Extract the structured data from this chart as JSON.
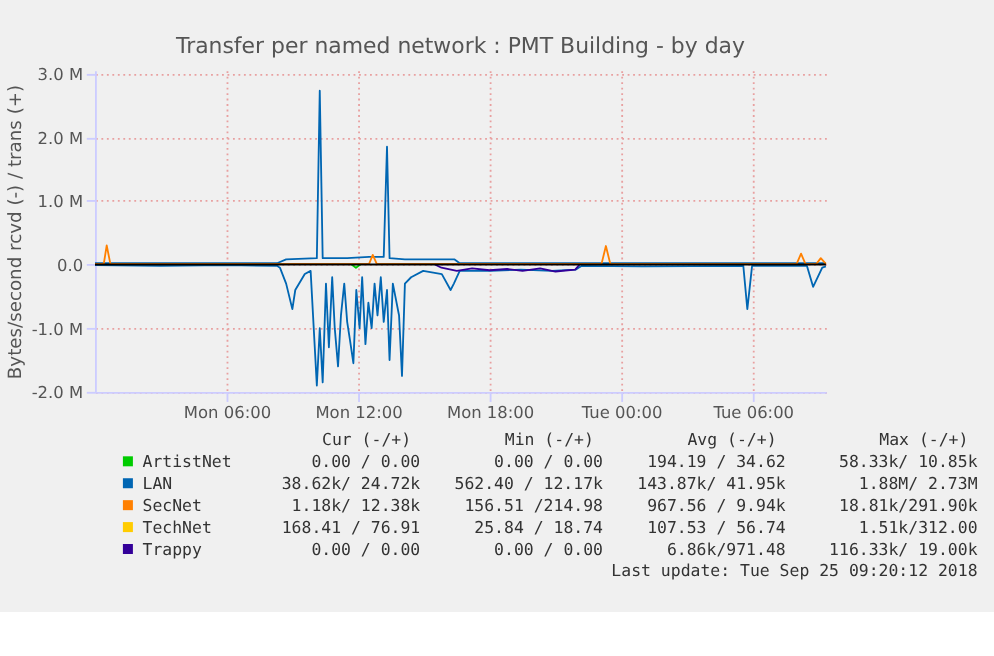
{
  "chart_data": {
    "type": "line",
    "title": "Transfer per named network : PMT Building - by day",
    "ylabel": "Bytes/second rcvd (-) / trans (+)",
    "xlim": [
      "2018-09-24T00:00",
      "2018-09-25T09:20"
    ],
    "xticks": [
      {
        "value": "2018-09-24T06:00",
        "label": "Mon 06:00"
      },
      {
        "value": "2018-09-24T12:00",
        "label": "Mon 12:00"
      },
      {
        "value": "2018-09-24T18:00",
        "label": "Mon 18:00"
      },
      {
        "value": "2018-09-25T00:00",
        "label": "Tue 00:00"
      },
      {
        "value": "2018-09-25T06:00",
        "label": "Tue 06:00"
      }
    ],
    "ylim": [
      -2000000,
      3050000
    ],
    "yticks": [
      {
        "value": -2000000,
        "label": "-2.0 M"
      },
      {
        "value": -1000000,
        "label": "-1.0 M"
      },
      {
        "value": 0,
        "label": "0.0"
      },
      {
        "value": 1000000,
        "label": "1.0 M"
      },
      {
        "value": 2000000,
        "label": "2.0 M"
      },
      {
        "value": 3000000,
        "label": "3.0 M"
      }
    ],
    "grid": true,
    "legend": "bottom",
    "line_style": "solid",
    "marker": "none",
    "ref_lines": [
      {
        "axis": "y",
        "value": 0,
        "color": "#000000"
      }
    ],
    "series": [
      {
        "name": "ArtistNet",
        "color": "#00cc00",
        "x": [
          "2018-09-24T11:42",
          "2018-09-24T11:54",
          "2018-09-24T12:06"
        ],
        "values": [
          0,
          -50000,
          0
        ]
      },
      {
        "name": "LAN",
        "color": "#0066b3",
        "x": [
          "2018-09-24T00:00",
          "2018-09-24T08:18",
          "2018-09-24T08:43",
          "2018-09-24T10:07",
          "2018-09-24T10:15",
          "2018-09-24T10:23",
          "2018-09-24T11:30",
          "2018-09-24T12:30",
          "2018-09-24T13:10",
          "2018-09-24T13:19",
          "2018-09-24T13:26",
          "2018-09-24T14:08",
          "2018-09-24T16:24",
          "2018-09-24T16:38",
          "2018-09-25T09:20"
        ],
        "values": [
          20000,
          20000,
          80000,
          100000,
          2730000,
          100000,
          100000,
          120000,
          120000,
          1850000,
          100000,
          80000,
          80000,
          20000,
          20000
        ]
      },
      {
        "color": "#0066b3",
        "x": [
          "2018-09-24T00:00",
          "2018-09-24T03:00",
          "2018-09-24T06:00",
          "2018-09-24T08:18",
          "2018-09-24T08:26",
          "2018-09-24T08:43",
          "2018-09-24T09:00",
          "2018-09-24T09:08",
          "2018-09-24T09:34",
          "2018-09-24T09:50",
          "2018-09-24T10:07",
          "2018-09-24T10:15",
          "2018-09-24T10:23",
          "2018-09-24T10:32",
          "2018-09-24T10:40",
          "2018-09-24T10:49",
          "2018-09-24T10:56",
          "2018-09-24T11:05",
          "2018-09-24T11:13",
          "2018-09-24T11:22",
          "2018-09-24T11:30",
          "2018-09-24T11:38",
          "2018-09-24T11:47",
          "2018-09-24T11:55",
          "2018-09-24T12:04",
          "2018-09-24T12:11",
          "2018-09-24T12:20",
          "2018-09-24T12:28",
          "2018-09-24T12:37",
          "2018-09-24T12:45",
          "2018-09-24T12:53",
          "2018-09-24T13:02",
          "2018-09-24T13:10",
          "2018-09-24T13:19",
          "2018-09-24T13:26",
          "2018-09-24T13:35",
          "2018-09-24T13:52",
          "2018-09-24T14:00",
          "2018-09-24T14:08",
          "2018-09-24T14:25",
          "2018-09-24T14:58",
          "2018-09-24T15:49",
          "2018-09-24T16:13",
          "2018-09-24T16:22",
          "2018-09-24T16:38",
          "2018-09-24T18:02",
          "2018-09-24T19:25",
          "2018-09-24T20:49",
          "2018-09-24T21:55",
          "2018-09-24T22:12",
          "2018-09-25T00:58",
          "2018-09-25T05:34",
          "2018-09-25T05:45",
          "2018-09-25T05:58",
          "2018-09-25T08:28",
          "2018-09-25T08:45",
          "2018-09-25T09:10",
          "2018-09-25T09:20"
        ],
        "values": [
          -10000,
          -20000,
          -10000,
          -20000,
          -50000,
          -300000,
          -700000,
          -400000,
          -150000,
          -100000,
          -1900000,
          -1000000,
          -1850000,
          -300000,
          -1300000,
          -200000,
          -1000000,
          -1600000,
          -800000,
          -300000,
          -900000,
          -1200000,
          -1550000,
          -400000,
          -1000000,
          -200000,
          -1250000,
          -600000,
          -1000000,
          -300000,
          -800000,
          -200000,
          -900000,
          -400000,
          -1500000,
          -300000,
          -800000,
          -1750000,
          -300000,
          -200000,
          -100000,
          -150000,
          -400000,
          -300000,
          -100000,
          -100000,
          -80000,
          -100000,
          -80000,
          -20000,
          -30000,
          -20000,
          -700000,
          -20000,
          -20000,
          -350000,
          -50000,
          -30000
        ]
      },
      {
        "name": "SecNet",
        "color": "#ff8000",
        "x": [
          "2018-09-24T00:00",
          "2018-09-24T00:24",
          "2018-09-24T00:32",
          "2018-09-24T00:42",
          "2018-09-24T12:30",
          "2018-09-24T12:40",
          "2018-09-24T12:51",
          "2018-09-24T23:06",
          "2018-09-24T23:18",
          "2018-09-24T23:30",
          "2018-09-25T08:00",
          "2018-09-25T08:12",
          "2018-09-25T08:24",
          "2018-09-25T08:54",
          "2018-09-25T09:06",
          "2018-09-25T09:20"
        ],
        "values": [
          10000,
          10000,
          300000,
          10000,
          10000,
          150000,
          10000,
          10000,
          290000,
          10000,
          10000,
          170000,
          10000,
          10000,
          100000,
          10000
        ]
      },
      {
        "name": "TechNet",
        "color": "#ffcc00"
      },
      {
        "name": "Trappy",
        "color": "#330099",
        "x": [
          "2018-09-24T15:30",
          "2018-09-24T15:48",
          "2018-09-24T16:30",
          "2018-09-24T17:12",
          "2018-09-24T18:00",
          "2018-09-24T18:48",
          "2018-09-24T19:30",
          "2018-09-24T20:18",
          "2018-09-24T21:00",
          "2018-09-24T21:54",
          "2018-09-24T22:06"
        ],
        "values": [
          0,
          -50000,
          -100000,
          -60000,
          -90000,
          -70000,
          -100000,
          -60000,
          -110000,
          -80000,
          0
        ]
      }
    ],
    "annotations": [
      "Cur (-/+)",
      "Min (-/+)",
      "Avg (-/+)",
      "Max (-/+)",
      "0.00 /  0.00",
      "0.00 /  0.00",
      "194.19 / 34.62",
      "58.33k/ 10.85k",
      "38.62k/ 24.72k",
      "562.40 / 12.17k",
      "143.87k/ 41.95k",
      "1.88M/  2.73M",
      "1.18k/ 12.38k",
      "156.51 /214.98",
      "967.56 /  9.94k",
      "18.81k/291.90k",
      "168.41 / 76.91",
      "25.84 / 18.74",
      "107.53 / 56.74",
      "1.51k/312.00",
      "0.00 /  0.00",
      "0.00 /  0.00",
      "6.86k/971.48",
      "116.33k/ 19.00k",
      "Last update: Tue Sep 25 09:20:12 2018"
    ]
  }
}
